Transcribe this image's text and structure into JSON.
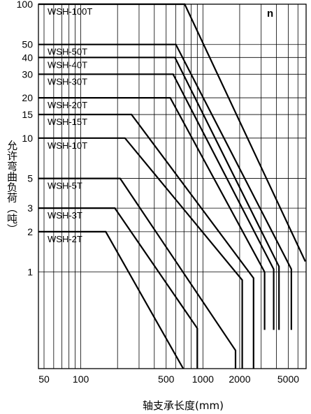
{
  "chart_data": {
    "type": "line",
    "corner_label": "n",
    "xlabel": "轴支承长度(mm)",
    "ylabel": "允许弯曲负荷（吨）",
    "x_scale": "log",
    "y_scale": "log",
    "xlim": [
      45,
      7000
    ],
    "ylim": [
      0.19,
      100
    ],
    "x_tick_labels": [
      {
        "value": 50,
        "label": "50"
      },
      {
        "value": 100,
        "label": "100"
      },
      {
        "value": 500,
        "label": "500"
      },
      {
        "value": 1000,
        "label": "1000"
      },
      {
        "value": 2000,
        "label": "2000"
      },
      {
        "value": 5000,
        "label": "5000"
      }
    ],
    "x_grid": [
      50,
      60,
      70,
      80,
      90,
      100,
      200,
      300,
      400,
      500,
      600,
      700,
      800,
      900,
      1000,
      2000,
      3000,
      4000,
      5000,
      6000,
      7000
    ],
    "y_tick_labels": [
      {
        "value": 100,
        "label": "100"
      },
      {
        "value": 50,
        "label": "50"
      },
      {
        "value": 40,
        "label": "40"
      },
      {
        "value": 30,
        "label": "30"
      },
      {
        "value": 20,
        "label": "20"
      },
      {
        "value": 15,
        "label": "15"
      },
      {
        "value": 10,
        "label": "10"
      },
      {
        "value": 5,
        "label": "5"
      },
      {
        "value": 3,
        "label": "3"
      },
      {
        "value": 2,
        "label": "2"
      },
      {
        "value": 1,
        "label": "1"
      }
    ],
    "grid": true,
    "series": [
      {
        "name": "WSH-100T",
        "x": [
          45,
          710,
          6900
        ],
        "y": [
          100,
          100,
          1.2
        ]
      },
      {
        "name": "WSH-50T",
        "x": [
          45,
          600,
          5300,
          5300
        ],
        "y": [
          50,
          50,
          1.05,
          0.37
        ]
      },
      {
        "name": "WSH-40T",
        "x": [
          45,
          590,
          4200,
          4200
        ],
        "y": [
          40,
          40,
          1.1,
          0.37
        ]
      },
      {
        "name": "WSH-30T",
        "x": [
          45,
          570,
          3800,
          3800
        ],
        "y": [
          30,
          30,
          1.05,
          0.37
        ]
      },
      {
        "name": "WSH-20T",
        "x": [
          45,
          540,
          3200,
          3200
        ],
        "y": [
          20,
          20,
          1.0,
          0.37
        ]
      },
      {
        "name": "WSH-15T",
        "x": [
          45,
          260,
          2600,
          2600
        ],
        "y": [
          15,
          15,
          0.9,
          0.19
        ]
      },
      {
        "name": "WSH-10T",
        "x": [
          45,
          230,
          2100,
          2100
        ],
        "y": [
          10,
          10,
          0.87,
          0.19
        ]
      },
      {
        "name": "WSH-5T",
        "x": [
          45,
          210,
          1850,
          1850
        ],
        "y": [
          5,
          5,
          0.26,
          0.19
        ]
      },
      {
        "name": "WSH-3T",
        "x": [
          45,
          190,
          900,
          900
        ],
        "y": [
          3,
          3,
          0.38,
          0.19
        ]
      },
      {
        "name": "WSH-2T",
        "x": [
          45,
          160,
          690
        ],
        "y": [
          2,
          2,
          0.19
        ]
      }
    ]
  }
}
